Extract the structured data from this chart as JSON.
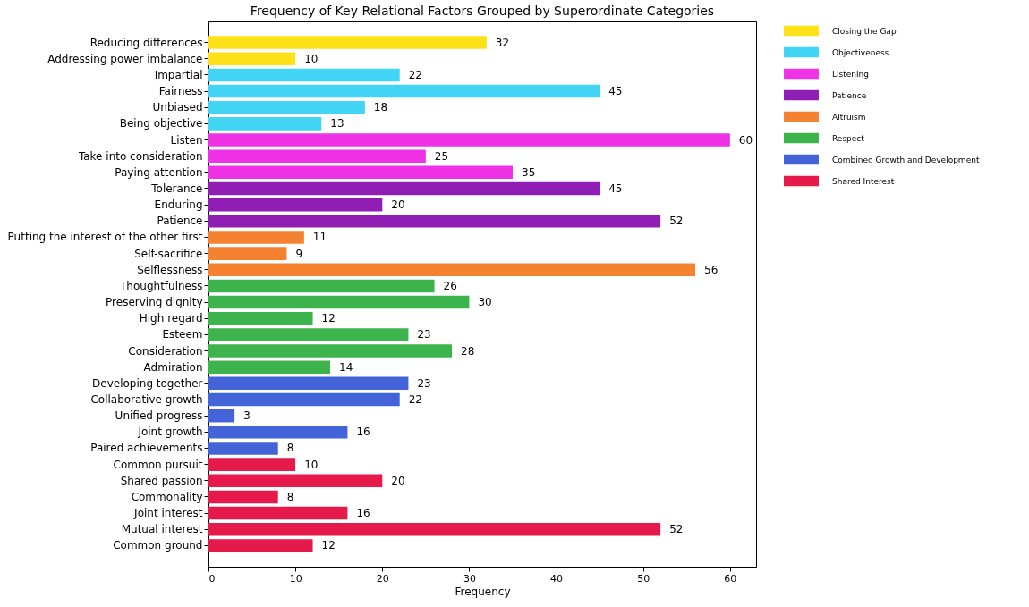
{
  "chart_data": {
    "type": "bar",
    "orientation": "horizontal",
    "title": "Frequency of Key Relational Factors Grouped by Superordinate Categories",
    "xlabel": "Frequency",
    "categories": [
      "Reducing differences",
      "Addressing power imbalance",
      "Impartial",
      "Fairness",
      "Unbiased",
      "Being objective",
      "Listen",
      "Take into consideration",
      "Paying attention",
      "Tolerance",
      "Enduring",
      "Patience",
      "Putting the interest of the other first",
      "Self-sacrifice",
      "Selflessness",
      "Thoughtfulness",
      "Preserving dignity",
      "High regard",
      "Esteem",
      "Consideration",
      "Admiration",
      "Developing together",
      "Collaborative growth",
      "Unified progress",
      "Joint growth",
      "Paired achievements",
      "Common pursuit",
      "Shared passion",
      "Commonality",
      "Joint interest",
      "Mutual interest",
      "Common ground"
    ],
    "series": [
      {
        "name": "Closing the Gap",
        "color": "#ffe119",
        "values": [
          32,
          10,
          null,
          null,
          null,
          null,
          null,
          null,
          null,
          null,
          null,
          null,
          null,
          null,
          null,
          null,
          null,
          null,
          null,
          null,
          null,
          null,
          null,
          null,
          null,
          null,
          null,
          null,
          null,
          null,
          null,
          null
        ]
      },
      {
        "name": "Objectiveness",
        "color": "#42d4f4",
        "values": [
          null,
          null,
          22,
          45,
          18,
          13,
          null,
          null,
          null,
          null,
          null,
          null,
          null,
          null,
          null,
          null,
          null,
          null,
          null,
          null,
          null,
          null,
          null,
          null,
          null,
          null,
          null,
          null,
          null,
          null,
          null,
          null
        ]
      },
      {
        "name": "Listening",
        "color": "#f032e6",
        "values": [
          null,
          null,
          null,
          null,
          null,
          null,
          60,
          25,
          35,
          null,
          null,
          null,
          null,
          null,
          null,
          null,
          null,
          null,
          null,
          null,
          null,
          null,
          null,
          null,
          null,
          null,
          null,
          null,
          null,
          null,
          null,
          null
        ]
      },
      {
        "name": "Patience",
        "color": "#911eb4",
        "values": [
          null,
          null,
          null,
          null,
          null,
          null,
          null,
          null,
          null,
          45,
          20,
          52,
          null,
          null,
          null,
          null,
          null,
          null,
          null,
          null,
          null,
          null,
          null,
          null,
          null,
          null,
          null,
          null,
          null,
          null,
          null,
          null
        ]
      },
      {
        "name": "Altruism",
        "color": "#f58231",
        "values": [
          null,
          null,
          null,
          null,
          null,
          null,
          null,
          null,
          null,
          null,
          null,
          null,
          11,
          9,
          56,
          null,
          null,
          null,
          null,
          null,
          null,
          null,
          null,
          null,
          null,
          null,
          null,
          null,
          null,
          null,
          null,
          null
        ]
      },
      {
        "name": "Respect",
        "color": "#3cb44b",
        "values": [
          null,
          null,
          null,
          null,
          null,
          null,
          null,
          null,
          null,
          null,
          null,
          null,
          null,
          null,
          null,
          26,
          30,
          12,
          23,
          28,
          14,
          null,
          null,
          null,
          null,
          null,
          null,
          null,
          null,
          null,
          null,
          null
        ]
      },
      {
        "name": "Combined Growth and Development",
        "color": "#4363d8",
        "values": [
          null,
          null,
          null,
          null,
          null,
          null,
          null,
          null,
          null,
          null,
          null,
          null,
          null,
          null,
          null,
          null,
          null,
          null,
          null,
          null,
          null,
          23,
          22,
          3,
          16,
          8,
          null,
          null,
          null,
          null,
          null,
          null
        ]
      },
      {
        "name": "Shared Interest",
        "color": "#e6194b",
        "values": [
          null,
          null,
          null,
          null,
          null,
          null,
          null,
          null,
          null,
          null,
          null,
          null,
          null,
          null,
          null,
          null,
          null,
          null,
          null,
          null,
          null,
          null,
          null,
          null,
          null,
          null,
          10,
          20,
          8,
          16,
          52,
          12
        ]
      }
    ],
    "xlim": [
      0,
      63
    ],
    "xticks": [
      0,
      10,
      20,
      30,
      40,
      50,
      60
    ],
    "data_labels": true,
    "legend": "right"
  }
}
